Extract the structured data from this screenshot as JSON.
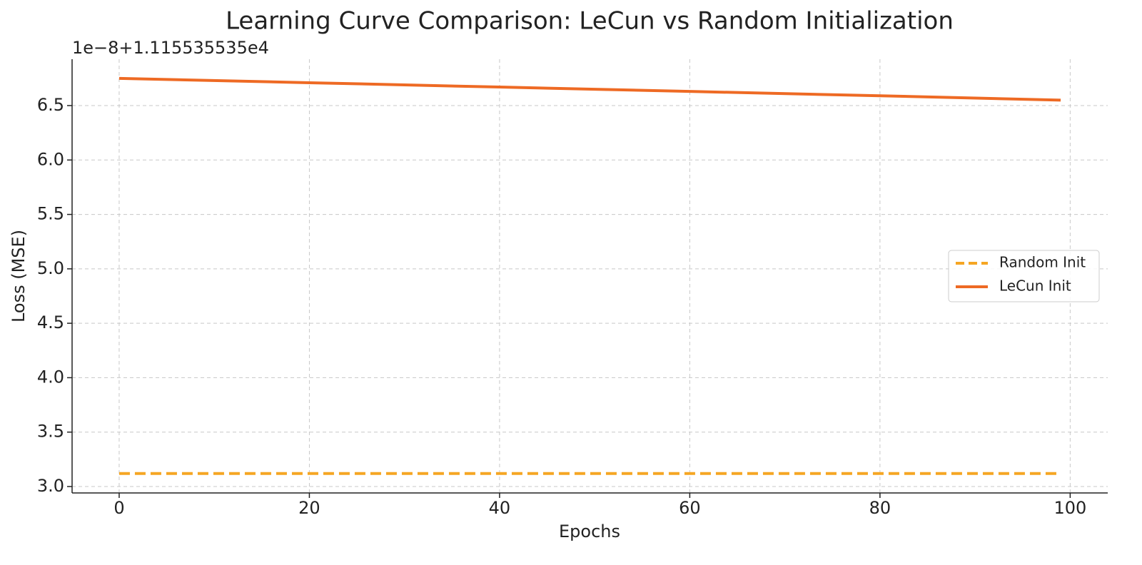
{
  "chart_data": {
    "type": "line",
    "title": "Learning Curve Comparison: LeCun vs Random Initialization",
    "axis_offset": "1e−8+1.115535535e4",
    "xlabel": "Epochs",
    "ylabel": "Loss (MSE)",
    "x": [
      0,
      20,
      40,
      60,
      80,
      99
    ],
    "series": [
      {
        "name": "Random Init",
        "color": "#f5a623",
        "dash": true,
        "values": [
          3.12,
          3.12,
          3.12,
          3.12,
          3.12,
          3.12
        ]
      },
      {
        "name": "LeCun Init",
        "color": "#ee6a24",
        "dash": false,
        "values": [
          6.75,
          6.71,
          6.67,
          6.63,
          6.59,
          6.55
        ]
      }
    ],
    "xlim": [
      -4.95,
      103.95
    ],
    "xticks": [
      0,
      20,
      40,
      60,
      80,
      100
    ],
    "ylim": [
      2.941,
      6.926
    ],
    "yticks": [
      {
        "value": 3,
        "label": "3.0"
      },
      3.5,
      {
        "value": 4,
        "label": "4.0"
      },
      4.5,
      {
        "value": 5,
        "label": "5.0"
      },
      5.5,
      {
        "value": 6,
        "label": "6.0"
      },
      6.5
    ],
    "grid": true,
    "legend": "center right"
  }
}
